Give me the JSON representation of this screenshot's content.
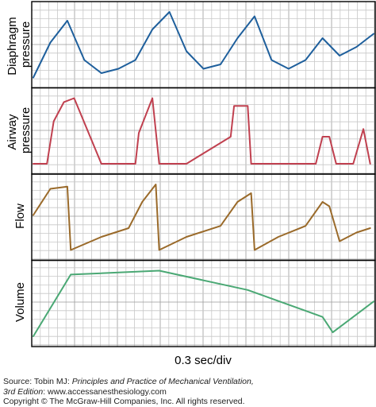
{
  "chart_data": {
    "type": "line",
    "xlabel": "0.3 sec/div",
    "grid": true,
    "panels": [
      {
        "name": "Diaphragm pressure",
        "ylabel_lines": [
          "Diaphragm",
          "pressure"
        ],
        "color": "#1e5f9c",
        "x": [
          0,
          0.05,
          0.1,
          0.15,
          0.2,
          0.25,
          0.3,
          0.35,
          0.4,
          0.45,
          0.5,
          0.55,
          0.6,
          0.65,
          0.7,
          0.75,
          0.8,
          0.85,
          0.9,
          0.95,
          1.0
        ],
        "values": [
          0.25,
          0.65,
          0.9,
          0.45,
          0.3,
          0.35,
          0.45,
          0.8,
          1.0,
          0.55,
          0.35,
          0.4,
          0.7,
          0.95,
          0.45,
          0.35,
          0.45,
          0.7,
          0.5,
          0.6,
          0.75
        ]
      },
      {
        "name": "Airway pressure",
        "ylabel_lines": [
          "Airway",
          "pressure"
        ],
        "color": "#c0404f",
        "x": [
          0,
          0.04,
          0.06,
          0.09,
          0.12,
          0.2,
          0.3,
          0.31,
          0.35,
          0.37,
          0.45,
          0.58,
          0.59,
          0.63,
          0.64,
          0.72,
          0.83,
          0.85,
          0.87,
          0.89,
          0.94,
          0.97,
          0.99
        ],
        "values": [
          0.0,
          0.0,
          0.55,
          0.8,
          0.85,
          0.0,
          0.0,
          0.4,
          0.85,
          0.0,
          0.0,
          0.35,
          0.75,
          0.75,
          0.0,
          0.0,
          0.0,
          0.35,
          0.35,
          0.0,
          0.0,
          0.45,
          0.0
        ]
      },
      {
        "name": "Flow",
        "ylabel_lines": [
          "Flow"
        ],
        "color": "#9a6a2a",
        "x": [
          0,
          0.05,
          0.1,
          0.11,
          0.2,
          0.28,
          0.32,
          0.36,
          0.37,
          0.45,
          0.55,
          0.6,
          0.64,
          0.65,
          0.72,
          0.8,
          0.85,
          0.87,
          0.9,
          0.95,
          0.99
        ],
        "values": [
          0.2,
          0.8,
          0.85,
          -0.6,
          -0.3,
          -0.1,
          0.5,
          0.9,
          -0.6,
          -0.3,
          -0.05,
          0.5,
          0.7,
          -0.6,
          -0.3,
          -0.05,
          0.5,
          0.4,
          -0.4,
          -0.2,
          -0.1
        ]
      },
      {
        "name": "Volume",
        "ylabel_lines": [
          "Volume"
        ],
        "color": "#4aa874",
        "x": [
          0,
          0.11,
          0.37,
          0.63,
          0.85,
          0.88,
          1.0
        ],
        "values": [
          0.1,
          0.9,
          0.95,
          0.7,
          0.35,
          0.15,
          0.55
        ]
      }
    ]
  },
  "source": {
    "line1_prefix": "Source: Tobin MJ: ",
    "line1_title": "Principles and Practice of Mechanical Ventilation,",
    "line2_edition": "3rd Edition",
    "line2_rest": ": www.accessanesthesiology.com",
    "line3": "Copyright © The McGraw-Hill Companies, Inc. All rights reserved."
  }
}
